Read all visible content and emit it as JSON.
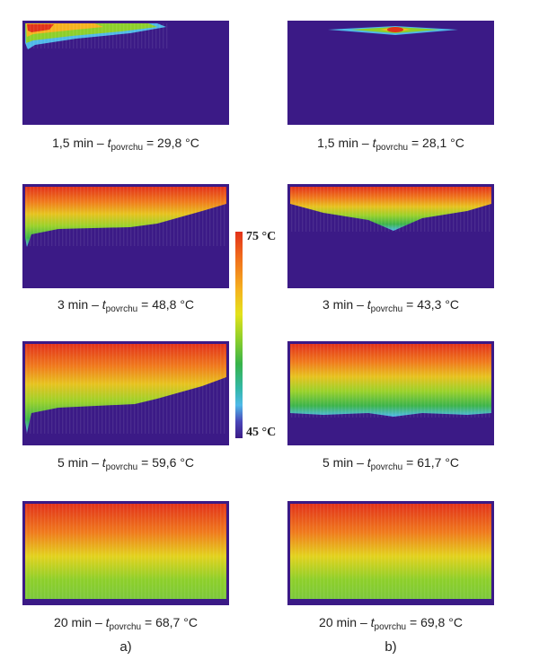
{
  "panels": [
    {
      "time": "1,5 min",
      "subscript": "povrchu",
      "temp": "29,8 °C"
    },
    {
      "time": "1,5 min",
      "subscript": "povrchu",
      "temp": "28,1 °C"
    },
    {
      "time": "3 min",
      "subscript": "povrchu",
      "temp": "48,8 °C"
    },
    {
      "time": "3 min",
      "subscript": "povrchu",
      "temp": "43,3 °C"
    },
    {
      "time": "5 min",
      "subscript": "povrchu",
      "temp": "59,6 °C"
    },
    {
      "time": "5 min",
      "subscript": "povrchu",
      "temp": "61,7 °C"
    },
    {
      "time": "20 min",
      "subscript": "povrchu",
      "temp": "68,7 °C"
    },
    {
      "time": "20 min",
      "subscript": "povrchu",
      "temp": "69,8 °C"
    }
  ],
  "caption_variable": "t",
  "caption_dash": "–",
  "caption_equals": "=",
  "scale": {
    "max": "75 °C",
    "min": "45 °C"
  },
  "column_labels": {
    "a": "a)",
    "b": "b)"
  },
  "colors": {
    "background": "#3b1a86",
    "hot": "#e2321a",
    "warm": "#f5b21f",
    "mid": "#8dcf2a",
    "cool": "#38b34a",
    "cold": "#4fb9e8"
  }
}
